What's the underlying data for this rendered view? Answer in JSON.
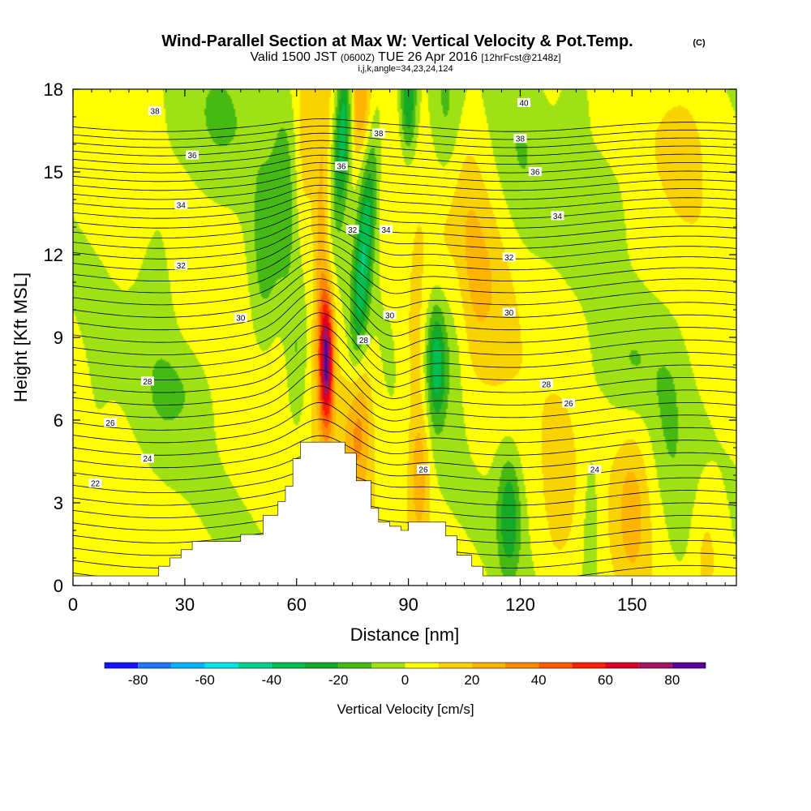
{
  "chart_data": {
    "type": "heatmap",
    "title": "Wind-Parallel Section at Max W: Vertical Velocity & Pot.Temp.",
    "title_mark": "(C)",
    "subtitle": {
      "valid": "Valid 1500 JST",
      "utc": "(0600Z)",
      "date": "TUE 26 Apr 2016",
      "fcst": "[12hrFcst@2148z]"
    },
    "params": "i,j,k,angle=34,23,24,124",
    "xlabel": "Distance [nm]",
    "ylabel": "Height [Kft MSL]",
    "xlim": [
      0,
      178
    ],
    "ylim": [
      0,
      18
    ],
    "x_ticks": [
      "0",
      "30",
      "60",
      "90",
      "120",
      "150"
    ],
    "y_ticks": [
      "0",
      "3",
      "6",
      "9",
      "12",
      "15",
      "18"
    ],
    "colorbar": {
      "label": "Vertical Velocity [cm/s]",
      "ticks": [
        "-80",
        "-60",
        "-40",
        "-20",
        "0",
        "20",
        "40",
        "60",
        "80"
      ],
      "levels": [
        -90,
        -80,
        -70,
        -60,
        -50,
        -40,
        -30,
        -20,
        -10,
        0,
        10,
        20,
        30,
        40,
        50,
        60,
        70,
        80,
        90
      ],
      "colors": [
        "#1414ff",
        "#1e78ff",
        "#00b4ff",
        "#00e6e6",
        "#00d28c",
        "#00be50",
        "#14aa28",
        "#46b914",
        "#a0e114",
        "#ffff00",
        "#fad200",
        "#ffb400",
        "#ff8c00",
        "#ff5a00",
        "#ff1e00",
        "#dc0028",
        "#a01464",
        "#5a0096"
      ]
    },
    "wmax": {
      "x": 68,
      "y": 8.2,
      "peak_cms": 75
    },
    "theta_labels": [
      {
        "x": 22,
        "y": 17.2,
        "text": "38"
      },
      {
        "x": 32,
        "y": 15.6,
        "text": "36"
      },
      {
        "x": 29,
        "y": 13.8,
        "text": "34"
      },
      {
        "x": 29,
        "y": 11.6,
        "text": "32"
      },
      {
        "x": 45,
        "y": 9.7,
        "text": "30"
      },
      {
        "x": 20,
        "y": 7.4,
        "text": "28"
      },
      {
        "x": 10,
        "y": 5.9,
        "text": "26"
      },
      {
        "x": 20,
        "y": 4.6,
        "text": "24"
      },
      {
        "x": 6,
        "y": 3.7,
        "text": "22"
      },
      {
        "x": 82,
        "y": 16.4,
        "text": "38"
      },
      {
        "x": 72,
        "y": 15.2,
        "text": "36"
      },
      {
        "x": 84,
        "y": 12.9,
        "text": "34"
      },
      {
        "x": 75,
        "y": 12.9,
        "text": "32"
      },
      {
        "x": 85,
        "y": 9.8,
        "text": "30"
      },
      {
        "x": 78,
        "y": 8.9,
        "text": "28"
      },
      {
        "x": 94,
        "y": 4.2,
        "text": "26"
      },
      {
        "x": 121,
        "y": 17.5,
        "text": "40"
      },
      {
        "x": 120,
        "y": 16.2,
        "text": "38"
      },
      {
        "x": 124,
        "y": 15.0,
        "text": "36"
      },
      {
        "x": 130,
        "y": 13.4,
        "text": "34"
      },
      {
        "x": 117,
        "y": 11.9,
        "text": "32"
      },
      {
        "x": 117,
        "y": 9.9,
        "text": "30"
      },
      {
        "x": 127,
        "y": 7.3,
        "text": "28"
      },
      {
        "x": 133,
        "y": 6.6,
        "text": "26"
      },
      {
        "x": 140,
        "y": 4.2,
        "text": "24"
      }
    ]
  }
}
